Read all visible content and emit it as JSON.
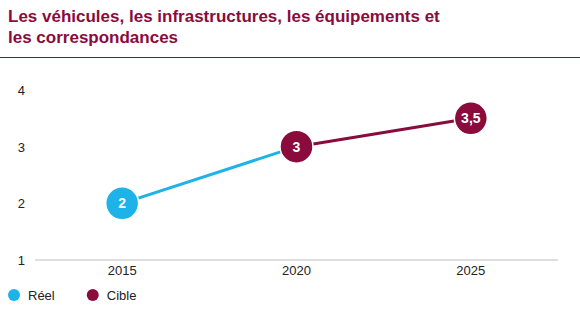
{
  "chart_data": {
    "type": "line",
    "title": "Les véhicules, les infrastructures, les équipements et les correspondances",
    "categories": [
      "2015",
      "2020",
      "2025"
    ],
    "series": [
      {
        "name": "Réel",
        "color": "#1db3e8",
        "values": [
          2,
          3,
          null
        ]
      },
      {
        "name": "Cible",
        "color": "#8a0c3d",
        "values": [
          null,
          3,
          3.5
        ],
        "value_labels": [
          null,
          "3",
          "3,5"
        ]
      }
    ],
    "ylim": [
      1,
      4
    ],
    "yticks": [
      1,
      2,
      3,
      4
    ],
    "data_labels": true,
    "marker": "circle",
    "legend": "bottom-left"
  }
}
